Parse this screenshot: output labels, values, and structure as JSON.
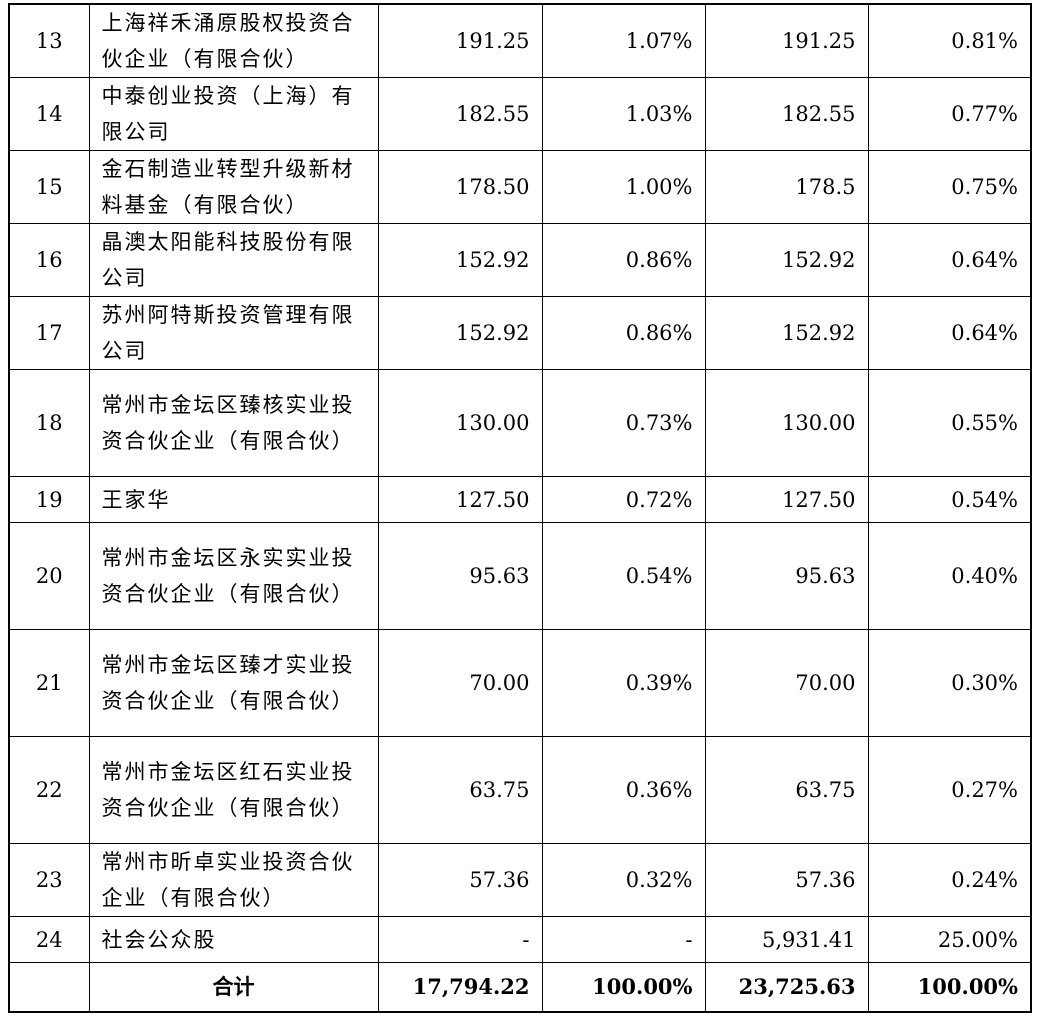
{
  "rows": [
    {
      "idx": "13",
      "name": "上海祥禾涌原股权投资合伙企业（有限合伙）",
      "v1": "191.25",
      "v2": "1.07%",
      "v3": "191.25",
      "v4": "0.81%"
    },
    {
      "idx": "14",
      "name": "中泰创业投资（上海）有限公司",
      "v1": "182.55",
      "v2": "1.03%",
      "v3": "182.55",
      "v4": "0.77%"
    },
    {
      "idx": "15",
      "name": "金石制造业转型升级新材料基金（有限合伙）",
      "v1": "178.50",
      "v2": "1.00%",
      "v3": "178.5",
      "v4": "0.75%"
    },
    {
      "idx": "16",
      "name": "晶澳太阳能科技股份有限公司",
      "v1": "152.92",
      "v2": "0.86%",
      "v3": "152.92",
      "v4": "0.64%"
    },
    {
      "idx": "17",
      "name": "苏州阿特斯投资管理有限公司",
      "v1": "152.92",
      "v2": "0.86%",
      "v3": "152.92",
      "v4": "0.64%"
    },
    {
      "idx": "18",
      "name": "常州市金坛区臻核实业投资合伙企业（有限合伙）",
      "v1": "130.00",
      "v2": "0.73%",
      "v3": "130.00",
      "v4": "0.55%"
    },
    {
      "idx": "19",
      "name": "王家华",
      "v1": "127.50",
      "v2": "0.72%",
      "v3": "127.50",
      "v4": "0.54%"
    },
    {
      "idx": "20",
      "name": "常州市金坛区永实实业投资合伙企业（有限合伙）",
      "v1": "95.63",
      "v2": "0.54%",
      "v3": "95.63",
      "v4": "0.40%"
    },
    {
      "idx": "21",
      "name": "常州市金坛区臻才实业投资合伙企业（有限合伙）",
      "v1": "70.00",
      "v2": "0.39%",
      "v3": "70.00",
      "v4": "0.30%"
    },
    {
      "idx": "22",
      "name": "常州市金坛区红石实业投资合伙企业（有限合伙）",
      "v1": "63.75",
      "v2": "0.36%",
      "v3": "63.75",
      "v4": "0.27%"
    },
    {
      "idx": "23",
      "name": "常州市昕卓实业投资合伙企业（有限合伙）",
      "v1": "57.36",
      "v2": "0.32%",
      "v3": "57.36",
      "v4": "0.24%"
    },
    {
      "idx": "24",
      "name": "社会公众股",
      "v1": "-",
      "v2": "-",
      "v3": "5,931.41",
      "v4": "25.00%"
    }
  ],
  "total": {
    "label": "合计",
    "v1": "17,794.22",
    "v2": "100.00%",
    "v3": "23,725.63",
    "v4": "100.00%"
  }
}
